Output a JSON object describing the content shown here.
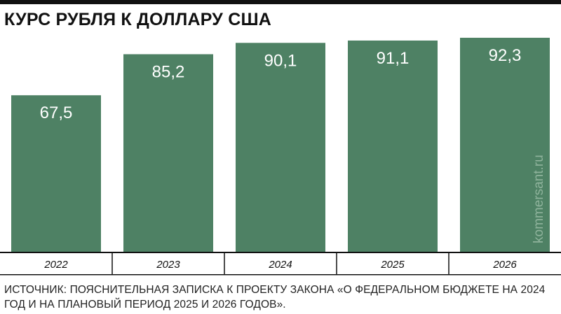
{
  "colors": {
    "bar": "#4e8164",
    "bar_label": "#ffffff",
    "axis_line": "#111111",
    "watermark": "#8fb39c"
  },
  "watermark": "kommersant.ru",
  "source": "ИСТОЧНИК: ПОЯСНИТЕЛЬНАЯ ЗАПИСКА К ПРОЕКТУ ЗАКОНА «О ФЕДЕРАЛЬНОМ БЮДЖЕТЕ НА 2024 ГОД И НА ПЛАНОВЫЙ ПЕРИОД 2025 И 2026 ГОДОВ».",
  "chart_data": {
    "type": "bar",
    "title": "КУРС РУБЛЯ К ДОЛЛАРУ США",
    "categories": [
      "2022",
      "2023",
      "2024",
      "2025",
      "2026"
    ],
    "values": [
      67.5,
      85.2,
      90.1,
      91.1,
      92.3
    ],
    "value_labels": [
      "67,5",
      "85,2",
      "90,1",
      "91,1",
      "92,3"
    ],
    "xlabel": "",
    "ylabel": "",
    "ylim": [
      0,
      92.3
    ],
    "grid": false,
    "legend": "none"
  }
}
